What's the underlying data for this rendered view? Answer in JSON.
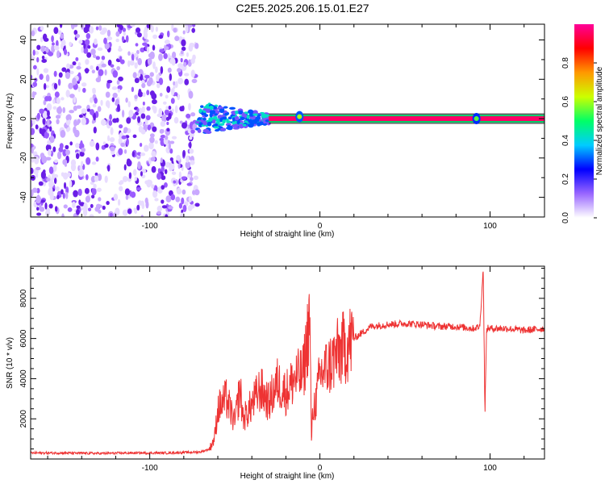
{
  "title": "C2E5.2025.206.15.01.E27",
  "chart_data": [
    {
      "type": "heatmap",
      "xlabel": "Height of straight line (km)",
      "ylabel": "Frequency (Hz)",
      "xlim": [
        -170,
        132
      ],
      "ylim": [
        -50,
        48
      ],
      "xticks": [
        -100,
        0,
        100
      ],
      "yticks": [
        -40,
        -20,
        0,
        20,
        40
      ],
      "colorbar": {
        "label": "Normalized spectral amplitude",
        "range": [
          0,
          1
        ],
        "ticks": [
          "0.0",
          "0.2",
          "0.4",
          "0.6",
          "0.8"
        ],
        "colors": [
          "#ffffff",
          "#9966ff",
          "#0000ff",
          "#00ccff",
          "#00ff66",
          "#ccff00",
          "#ff9900",
          "#ff0000",
          "#ff0099"
        ]
      },
      "regions": [
        {
          "x_from": -170,
          "x_to": -72,
          "f_from": -50,
          "f_to": 48,
          "amplitude": 0.1
        },
        {
          "x_from": -72,
          "x_to": -30,
          "f_from": -8,
          "f_to": 8,
          "amplitude": 0.4
        },
        {
          "x_from": -30,
          "x_to": 132,
          "f_from": -1,
          "f_to": 1,
          "amplitude": 0.95
        }
      ],
      "hotspots": [
        {
          "x": -12,
          "f": 1,
          "amplitude": 0.6
        },
        {
          "x": 92,
          "f": 0,
          "amplitude": 0.55
        }
      ]
    },
    {
      "type": "line",
      "xlabel": "Height of straight line (km)",
      "ylabel": "SNR (10 * v/v)",
      "xlim": [
        -170,
        132
      ],
      "ylim": [
        0,
        9600
      ],
      "xticks": [
        -100,
        0,
        100
      ],
      "yticks": [
        2000,
        4000,
        6000,
        8000
      ],
      "color": "#ee3333",
      "series": [
        {
          "x": [
            -170,
            -150,
            -130,
            -110,
            -90,
            -70,
            -65,
            -62,
            -60,
            -55,
            -50,
            -47,
            -45,
            -40,
            -35,
            -30,
            -25,
            -20,
            -15,
            -10,
            -8,
            -6,
            -5,
            -4,
            -2,
            0,
            5,
            10,
            20,
            30,
            40,
            50,
            60,
            70,
            80,
            90,
            94,
            96,
            97,
            98,
            100,
            110,
            120,
            132
          ],
          "y": [
            300,
            300,
            280,
            300,
            300,
            350,
            500,
            1000,
            2500,
            3000,
            1800,
            3500,
            2000,
            2700,
            3500,
            2800,
            3800,
            3300,
            4000,
            4200,
            5500,
            7200,
            1000,
            2500,
            3000,
            4200,
            4600,
            5200,
            6000,
            6600,
            6700,
            6750,
            6700,
            6600,
            6600,
            6500,
            6600,
            9500,
            2300,
            6500,
            6500,
            6500,
            6400,
            6500
          ]
        }
      ]
    }
  ]
}
